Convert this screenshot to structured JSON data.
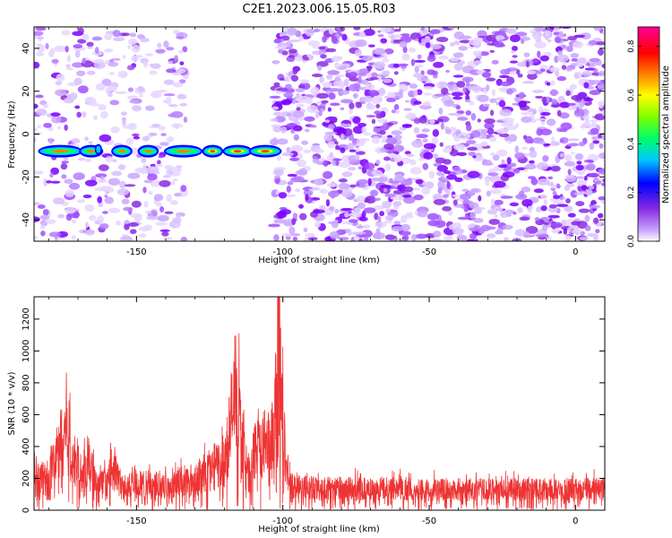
{
  "title": "C2E1.2023.006.15.05.R03",
  "colorbar": {
    "label": "Normalized spectral amplitude",
    "ticks": [
      0.0,
      0.2,
      0.4,
      0.6,
      0.8
    ],
    "tick_labels": [
      "0.0",
      "0.2",
      "0.4",
      "0.6",
      "0.8"
    ],
    "range": [
      0,
      0.88
    ],
    "colors": [
      "#ffffff",
      "#c9a6ff",
      "#8a2be2",
      "#0000ff",
      "#00c8ff",
      "#00ff66",
      "#80ff00",
      "#ffff00",
      "#ff8000",
      "#ff0000",
      "#ff0099"
    ]
  },
  "chart_data": [
    {
      "type": "heatmap",
      "xlabel": "Height of straight line (km)",
      "ylabel": "Frequency (Hz)",
      "xlim": [
        -185,
        10
      ],
      "ylim": [
        -50,
        50
      ],
      "x_ticks": [
        -150,
        -100,
        -50,
        0
      ],
      "x_tick_labels": [
        "-150",
        "-100",
        "-50",
        "0"
      ],
      "y_ticks": [
        -40,
        -20,
        0,
        20,
        40
      ],
      "y_tick_labels": [
        "-40",
        "-20",
        "0",
        "20",
        "40"
      ],
      "signal_band": {
        "frequency_hz": -8,
        "x_from": -185,
        "x_to": -101,
        "peak_amplitude": 0.8
      },
      "regions": [
        {
          "x_from": -185,
          "x_to": -133,
          "noise_density": "moderate"
        },
        {
          "x_from": -133,
          "x_to": -103,
          "noise_density": "none"
        },
        {
          "x_from": -103,
          "x_to": 10,
          "noise_density": "high"
        }
      ]
    },
    {
      "type": "line",
      "xlabel": "Height of straight line (km)",
      "ylabel": "SNR (10 * v/v)",
      "xlim": [
        -185,
        10
      ],
      "ylim": [
        0,
        1340
      ],
      "x_ticks": [
        -150,
        -100,
        -50,
        0
      ],
      "x_tick_labels": [
        "-150",
        "-100",
        "-50",
        "0"
      ],
      "y_ticks": [
        0,
        200,
        400,
        600,
        800,
        1000,
        1200
      ],
      "y_tick_labels": [
        "0",
        "200",
        "400",
        "600",
        "800",
        "1000",
        "1200"
      ],
      "color": "#ee3333",
      "envelope": [
        {
          "x": -185,
          "y": 230
        },
        {
          "x": -180,
          "y": 260
        },
        {
          "x": -176,
          "y": 520
        },
        {
          "x": -174,
          "y": 700
        },
        {
          "x": -172,
          "y": 420
        },
        {
          "x": -168,
          "y": 300
        },
        {
          "x": -166,
          "y": 430
        },
        {
          "x": -164,
          "y": 200
        },
        {
          "x": -160,
          "y": 200
        },
        {
          "x": -158,
          "y": 350
        },
        {
          "x": -155,
          "y": 180
        },
        {
          "x": -150,
          "y": 200
        },
        {
          "x": -140,
          "y": 200
        },
        {
          "x": -130,
          "y": 240
        },
        {
          "x": -124,
          "y": 330
        },
        {
          "x": -120,
          "y": 380
        },
        {
          "x": -117,
          "y": 800
        },
        {
          "x": -115,
          "y": 720
        },
        {
          "x": -113,
          "y": 380
        },
        {
          "x": -111,
          "y": 250
        },
        {
          "x": -109,
          "y": 520
        },
        {
          "x": -106,
          "y": 500
        },
        {
          "x": -103,
          "y": 560
        },
        {
          "x": -101.5,
          "y": 1300
        },
        {
          "x": -100,
          "y": 650
        },
        {
          "x": -98,
          "y": 200
        },
        {
          "x": -90,
          "y": 170
        },
        {
          "x": -50,
          "y": 160
        },
        {
          "x": 0,
          "y": 160
        },
        {
          "x": 10,
          "y": 170
        }
      ]
    }
  ]
}
